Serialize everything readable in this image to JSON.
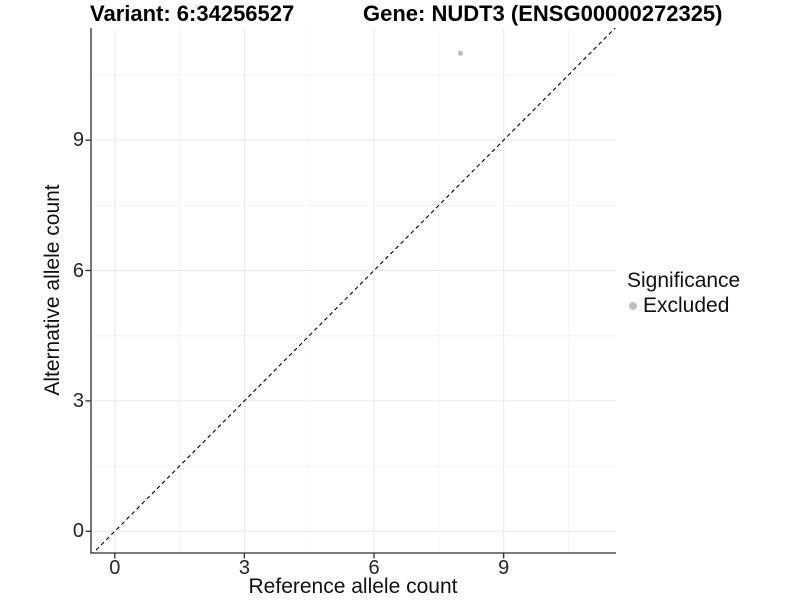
{
  "titles": {
    "variant": "Variant: 6:34256527",
    "gene": "Gene: NUDT3 (ENSG00000272325)"
  },
  "legend": {
    "title": "Significance",
    "position": "right",
    "items": [
      {
        "label": "Excluded",
        "marker": "circle",
        "color": "#bebebe"
      }
    ]
  },
  "chart_data": {
    "type": "scatter",
    "title": "Variant: 6:34256527    Gene: NUDT3 (ENSG00000272325)",
    "xlabel": "Reference allele count",
    "ylabel": "Alternative allele count",
    "xticks": [
      0,
      3,
      6,
      9
    ],
    "yticks": [
      0,
      3,
      6,
      9
    ],
    "xminor": [
      1.5,
      4.5,
      7.5,
      10.5
    ],
    "yminor": [
      1.5,
      4.5,
      7.5,
      10.5
    ],
    "xlim": [
      -0.55,
      11.6
    ],
    "ylim": [
      -0.5,
      11.58
    ],
    "grid": "major and minor, very light gray, white background",
    "axes": "left and bottom black axis lines with outward ticks at major breaks",
    "legend_position": "right, vertically centered",
    "series": [
      {
        "name": "Excluded",
        "color": "#bebebe",
        "points": [
          {
            "x": 8,
            "y": 11
          }
        ]
      }
    ],
    "reference_line": {
      "type": "identity y = x",
      "style": "dashed",
      "color": "#000000"
    }
  },
  "colors": {
    "background": "#ffffff",
    "point": "#bebebe",
    "axis_line": "#2e2e2e",
    "tick_text": "#262626",
    "title_text": "#000000",
    "grid_major": "#e9e9e9",
    "grid_minor": "#f4f4f4",
    "reference_line": "#000000"
  }
}
